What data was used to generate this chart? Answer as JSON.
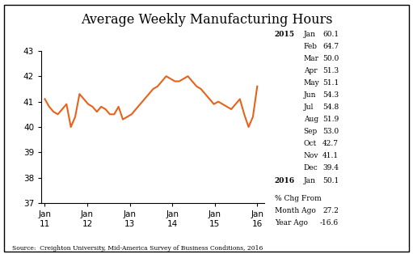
{
  "title": "Average Weekly Manufacturing Hours",
  "line_color": "#E8621A",
  "line_width": 1.5,
  "ylim": [
    37,
    43
  ],
  "yticks": [
    37,
    38,
    39,
    40,
    41,
    42,
    43
  ],
  "xtick_labels": [
    "Jan\n11",
    "Jan\n12",
    "Jan\n13",
    "Jan\n14",
    "Jan\n15",
    "Jan\n16"
  ],
  "source_text": "Source:  Creighton University, Mid-America Survey of Business Conditions, 2016",
  "values": [
    41.1,
    40.8,
    40.6,
    40.5,
    40.7,
    40.9,
    40.0,
    40.4,
    41.3,
    41.1,
    40.9,
    40.8,
    40.6,
    40.8,
    40.7,
    40.5,
    40.5,
    40.8,
    40.3,
    40.4,
    40.5,
    40.7,
    40.9,
    41.1,
    41.3,
    41.5,
    41.6,
    41.8,
    42.0,
    41.9,
    41.8,
    41.8,
    41.9,
    42.0,
    41.8,
    41.6,
    41.5,
    41.3,
    41.1,
    40.9,
    41.0,
    40.9,
    40.8,
    40.7,
    40.9,
    41.1,
    40.5,
    40.0,
    40.4,
    41.6
  ],
  "right_col_year2015": "2015",
  "right_col_year2016": "2016",
  "right_col_months": [
    "Jan",
    "Feb",
    "Mar",
    "Apr",
    "May",
    "Jun",
    "Jul",
    "Aug",
    "Sep",
    "Oct",
    "Nov",
    "Dec",
    "Jan"
  ],
  "right_col_vals": [
    "60.1",
    "64.7",
    "50.0",
    "51.3",
    "51.1",
    "54.3",
    "54.8",
    "51.9",
    "53.0",
    "42.7",
    "41.1",
    "39.4",
    "50.1"
  ],
  "pct_chg_label": "% Chg From",
  "month_ago_label": "Month Ago",
  "month_ago_val": "27.2",
  "year_ago_label": "Year Ago",
  "year_ago_val": "-16.6"
}
